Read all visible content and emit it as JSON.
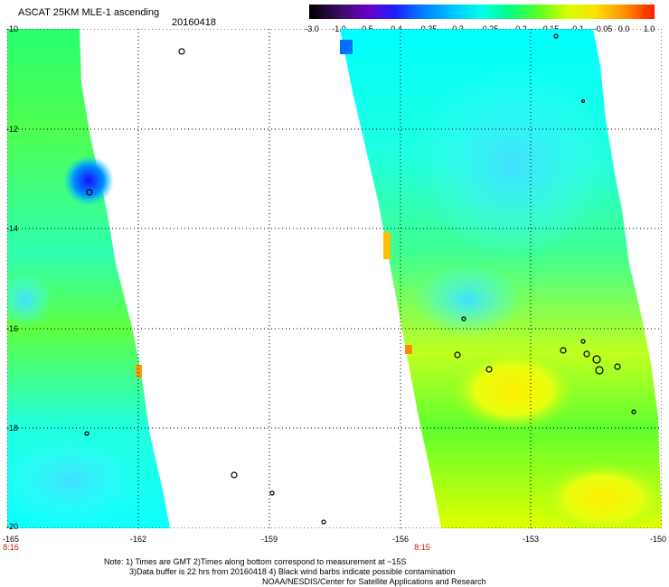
{
  "header": {
    "title": "ASCAT 25KM MLE-1 ascending",
    "date": "20160418"
  },
  "colorbar": {
    "labels": [
      "-3.0",
      "-1.0",
      "-0.5",
      "-0.4",
      "-0.35",
      "-0.3",
      "-0.25",
      "-0.2",
      "-0.15",
      "-0.1",
      "-0.05",
      "0.0",
      "1.0"
    ],
    "colors": [
      "#000000",
      "#3a0c66",
      "#6a00c8",
      "#1f1fff",
      "#0080ff",
      "#00c8ff",
      "#00ffe8",
      "#00ff80",
      "#60ff20",
      "#d8ff00",
      "#ffe000",
      "#ff8800",
      "#ff1a00"
    ]
  },
  "map": {
    "lat_labels": [
      "-10",
      "-12",
      "-14",
      "-16",
      "-18",
      "-20"
    ],
    "lon_labels": [
      "-165",
      "-162",
      "-159",
      "-156",
      "-153",
      "-150"
    ],
    "time_labels": [
      "8:16",
      "8:15"
    ],
    "grid": "dotted"
  },
  "notes": {
    "line1": "Note: 1) Times are GMT 2)Times along bottom correspond to measurement at ~15S",
    "line2": "3)Data buffer is 22 hrs from 20160418 4) Black wind barbs indicate possible contamination",
    "line3": "NOAA/NESDIS/Center for Satellite Applications and Research"
  }
}
